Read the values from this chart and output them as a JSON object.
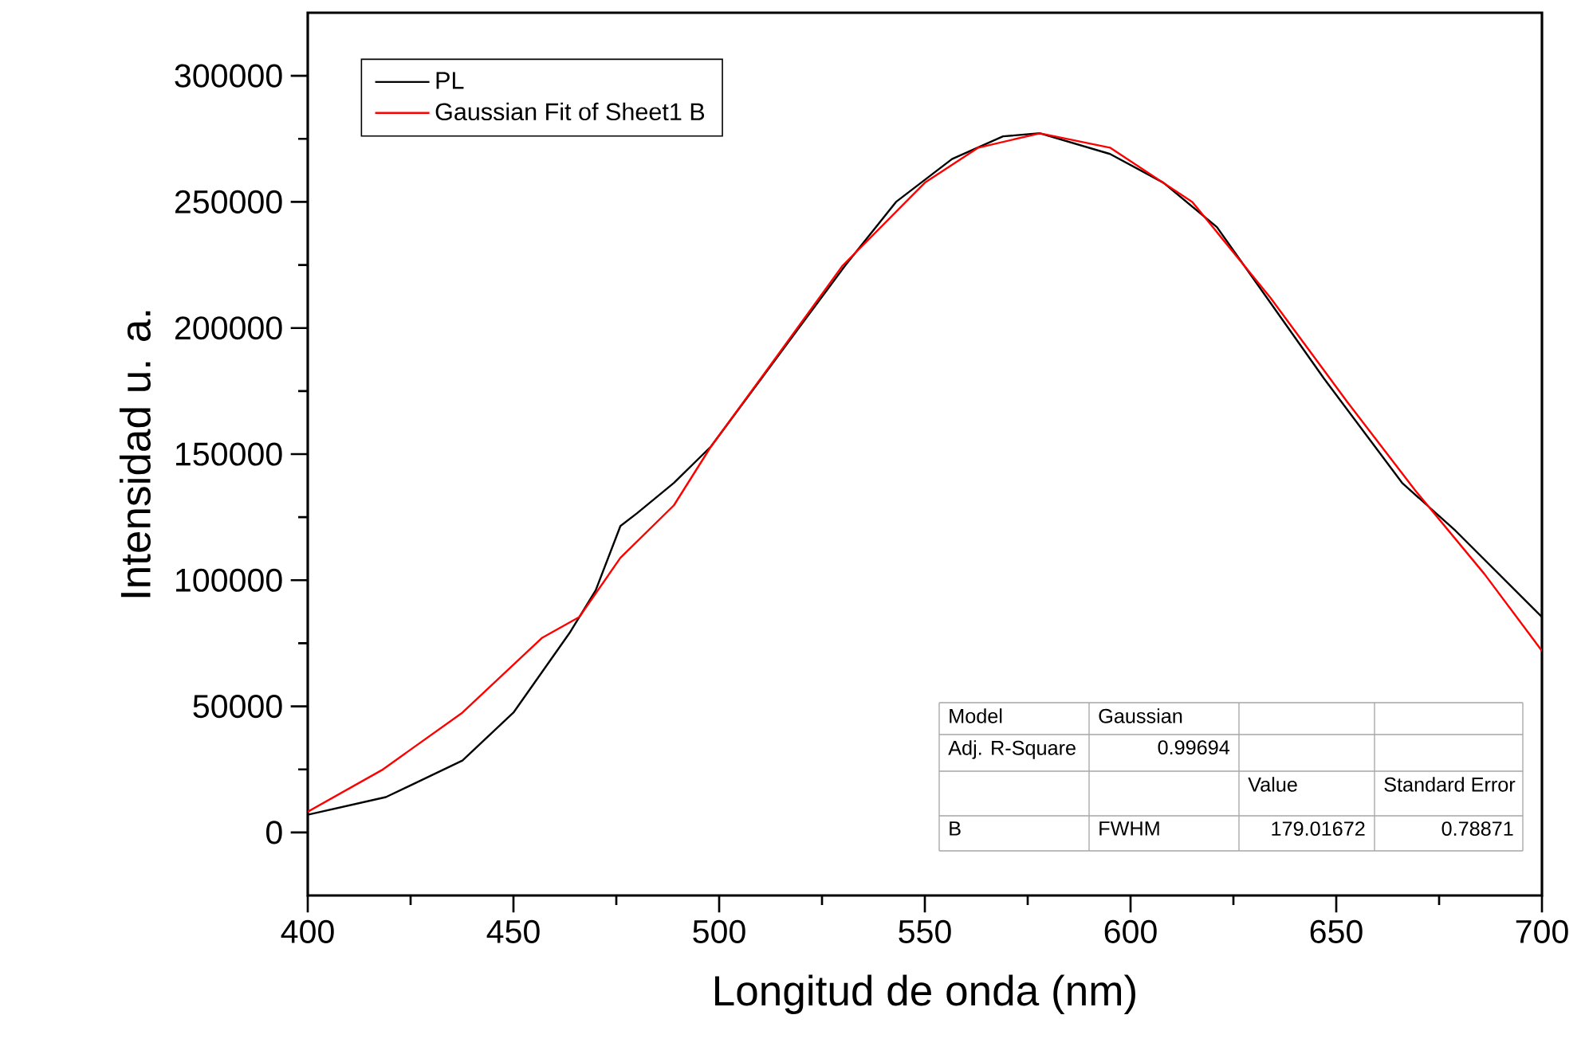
{
  "chart_data": {
    "type": "line",
    "xlabel": "Longitud de onda (nm)",
    "ylabel": "Intensidad u. a.",
    "xlim": [
      400,
      700
    ],
    "ylim": [
      -25000,
      325000
    ],
    "xticks": [
      400,
      450,
      500,
      550,
      600,
      650,
      700
    ],
    "yticks": [
      0,
      50000,
      100000,
      150000,
      200000,
      250000,
      300000
    ],
    "grid": false,
    "legend": "top left",
    "marker": "none",
    "line_style": "solid",
    "series": [
      {
        "name": "PL",
        "color": "#000000",
        "x": [
          400,
          419,
          437.6,
          450,
          463.6,
          470,
          476,
          480,
          489,
          498,
          511,
          530.6,
          543,
          556.6,
          569,
          578,
          595,
          608,
          621,
          634,
          647,
          666,
          679,
          700
        ],
        "values": [
          7000,
          14000,
          28500,
          47500,
          79000,
          96000,
          121500,
          126500,
          138600,
          153000,
          181600,
          224700,
          250000,
          267000,
          276000,
          277200,
          269000,
          257600,
          240000,
          210000,
          180000,
          138600,
          119600,
          85400
        ]
      },
      {
        "name": "Gaussian Fit of Sheet1 B",
        "color": "#ff0000",
        "x": [
          400,
          418,
          437.6,
          457,
          466,
          476,
          489,
          498,
          511,
          530,
          550,
          563,
          578,
          595,
          615,
          634,
          653,
          669,
          686,
          700
        ],
        "values": [
          8200,
          24700,
          47500,
          77200,
          85400,
          108900,
          129700,
          153000,
          182000,
          224700,
          257600,
          271500,
          277200,
          271500,
          250000,
          212000,
          170000,
          136000,
          102500,
          72000
        ]
      }
    ],
    "annotations": [
      "Model",
      "Gaussian",
      "Adj. R-Square",
      "0.99694",
      "Value",
      "Standard Error",
      "B",
      "FWHM",
      "179.01672",
      "0.78871"
    ]
  }
}
